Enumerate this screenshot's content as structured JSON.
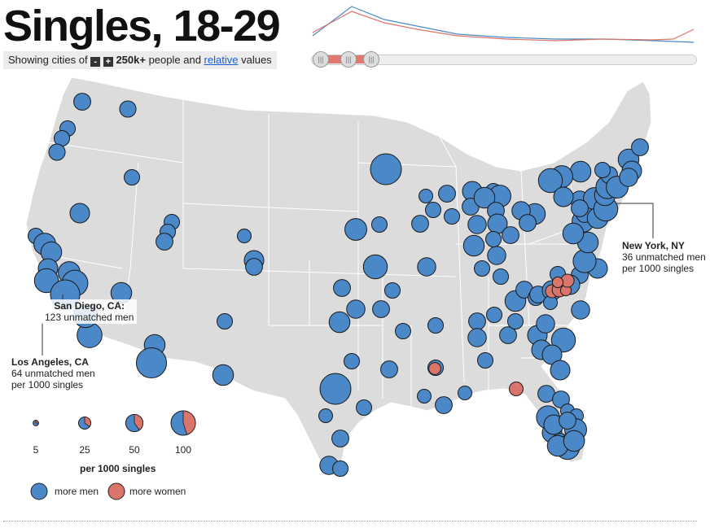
{
  "title": "Singles, 18-29",
  "controls": {
    "prefix": "Showing cities of",
    "minus": "-",
    "plus": "+",
    "threshold": "250k+",
    "middle": "people and",
    "link": "relative",
    "suffix": "values"
  },
  "slider": {
    "handle_glyph": "|||"
  },
  "colors": {
    "men": "#4a88c8",
    "women": "#d9756a",
    "land": "#dcdcdc",
    "border": "#ffffff"
  },
  "callouts": {
    "sd": {
      "city": "San Diego, CA:",
      "text": "123 unmatched men"
    },
    "la": {
      "city": "Los Angeles, CA",
      "line1": "64 unmatched men",
      "line2": "per 1000 singles"
    },
    "ny": {
      "city": "New York, NY",
      "line1": "36 unmatched men",
      "line2": "per 1000 singles"
    }
  },
  "legend": {
    "sizes": [
      {
        "label": "5",
        "share": 0.25
      },
      {
        "label": "25",
        "share": 0.35
      },
      {
        "label": "50",
        "share": 0.4
      },
      {
        "label": "100",
        "share": 0.45
      }
    ],
    "unit": "per 1000 singles",
    "men": "more men",
    "women": "more women"
  },
  "cities_men_values": [
    30,
    28,
    25,
    25,
    28,
    25,
    40,
    25,
    50,
    45,
    40,
    60,
    50,
    70,
    90,
    65,
    45,
    60,
    25,
    45,
    95,
    45,
    25,
    25,
    30,
    20,
    40,
    30,
    100,
    25,
    50,
    60,
    30,
    25,
    35,
    30,
    45,
    100,
    25,
    20,
    25,
    30,
    35,
    25,
    20,
    30,
    30,
    25,
    35,
    25,
    25,
    20,
    30,
    25,
    30,
    25,
    40,
    30,
    25,
    50,
    45,
    30,
    35,
    40,
    45,
    35,
    30,
    25,
    25,
    25,
    30,
    25,
    20,
    30,
    40,
    35,
    40,
    60,
    40,
    45,
    30,
    25,
    25,
    30,
    40,
    20,
    30,
    40,
    35,
    40,
    55,
    45,
    50,
    45,
    35,
    30,
    50,
    45,
    60,
    45,
    55,
    30,
    50,
    45,
    40,
    35,
    30,
    25,
    45,
    50,
    60,
    45,
    35,
    30,
    40,
    30,
    35,
    25,
    25,
    40,
    30,
    30,
    20,
    20,
    55,
    40,
    35,
    50,
    60,
    45,
    45,
    40,
    30,
    35,
    45,
    55,
    30
  ],
  "cities_women_values": [
    15,
    20,
    18,
    22,
    12,
    18,
    12
  ]
}
